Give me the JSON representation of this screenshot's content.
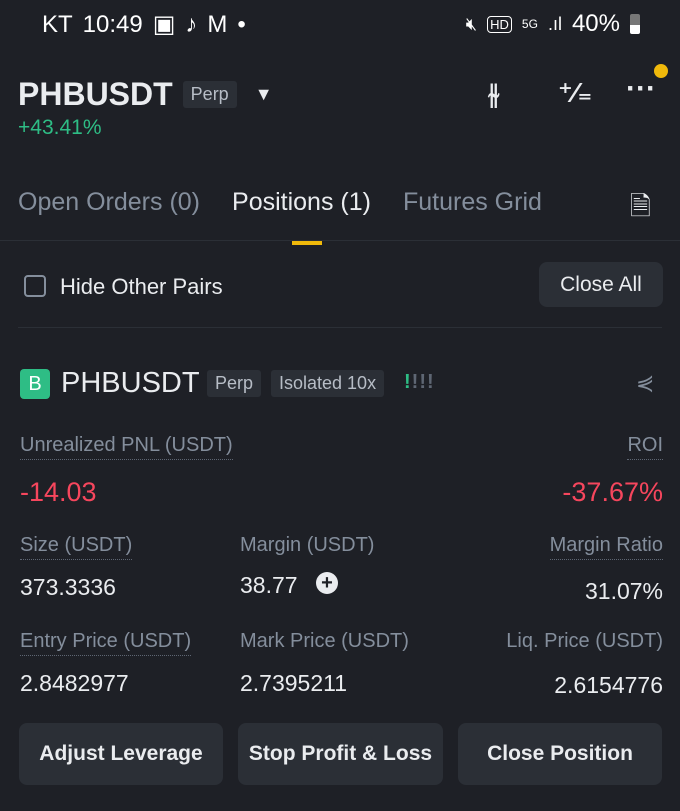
{
  "status_bar": {
    "carrier": "KT",
    "time": "10:49",
    "battery": "40%"
  },
  "header": {
    "symbol": "PHBUSDT",
    "type": "Perp",
    "change": "+43.41%"
  },
  "tabs": [
    {
      "label": "Open Orders (0)"
    },
    {
      "label": "Positions (1)",
      "active": true
    },
    {
      "label": "Futures Grid"
    }
  ],
  "filter": {
    "hide_other_pairs": "Hide Other Pairs",
    "checked": false,
    "close_all": "Close All"
  },
  "position": {
    "side_badge": "B",
    "symbol": "PHBUSDT",
    "type": "Perp",
    "margin_mode": "Isolated 10x",
    "pnl_label": "Unrealized PNL (USDT)",
    "pnl": "-14.03",
    "roi_label": "ROI",
    "roi": "-37.67%",
    "size_label": "Size (USDT)",
    "size": "373.3336",
    "margin_label": "Margin (USDT)",
    "margin": "38.77",
    "ratio_label": "Margin Ratio",
    "ratio": "31.07%",
    "entry_label": "Entry Price (USDT)",
    "entry": "2.8482977",
    "mark_label": "Mark Price (USDT)",
    "mark": "2.7395211",
    "liq_label": "Liq. Price (USDT)",
    "liq": "2.6154776"
  },
  "actions": {
    "adjust": "Adjust Leverage",
    "tpsl": "Stop Profit & Loss",
    "close": "Close Position"
  },
  "colors": {
    "accent": "#f0b90b",
    "up": "#2ebd85",
    "down": "#f6465d"
  }
}
